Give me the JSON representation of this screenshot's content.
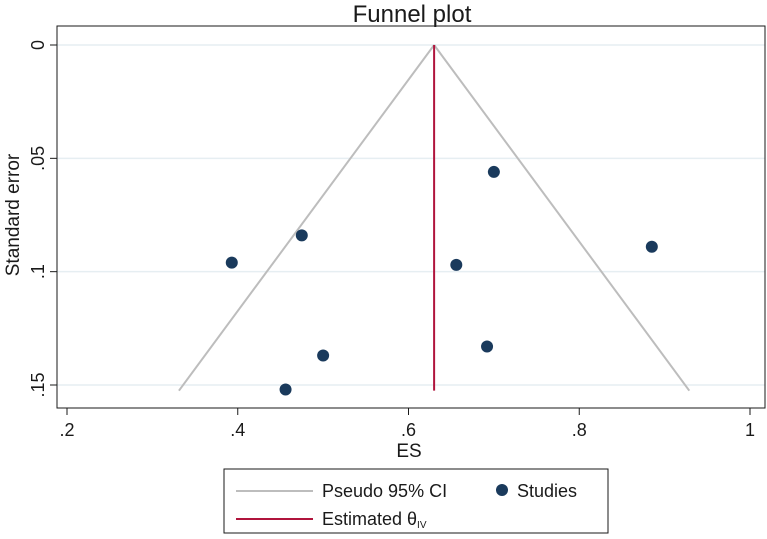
{
  "chart_data": {
    "type": "scatter",
    "title": "Funnel plot",
    "xlabel": "ES",
    "ylabel": "Standard error",
    "xlim": [
      0.2,
      1.0
    ],
    "ylim": [
      0,
      0.15
    ],
    "y_reversed": true,
    "xticks": [
      0.2,
      0.4,
      0.6,
      0.8,
      1.0
    ],
    "xtick_labels": [
      ".2",
      ".4",
      ".6",
      ".8",
      "1"
    ],
    "yticks": [
      0,
      0.05,
      0.1,
      0.15
    ],
    "ytick_labels": [
      "0",
      ".05",
      ".1",
      ".15"
    ],
    "grid": "horizontal",
    "pooled_estimate": 0.63,
    "max_se": 0.1525,
    "ci_multiplier": 1.96,
    "studies": [
      {
        "x": 0.7,
        "y": 0.056
      },
      {
        "x": 0.475,
        "y": 0.084
      },
      {
        "x": 0.885,
        "y": 0.089
      },
      {
        "x": 0.393,
        "y": 0.096
      },
      {
        "x": 0.656,
        "y": 0.097
      },
      {
        "x": 0.692,
        "y": 0.133
      },
      {
        "x": 0.5,
        "y": 0.137
      },
      {
        "x": 0.456,
        "y": 0.152
      }
    ],
    "legend": {
      "position": "bottom",
      "ci_label": "Pseudo 95% CI",
      "studies_label": "Studies",
      "estimate_label": "Estimated θ",
      "estimate_sub": "IV"
    },
    "colors": {
      "ci_line": "#bdbdbd",
      "estimate_line": "#b0143c",
      "points": "#1a3a5c",
      "grid": "#e6eef2",
      "axis": "#1a1a1a"
    }
  }
}
